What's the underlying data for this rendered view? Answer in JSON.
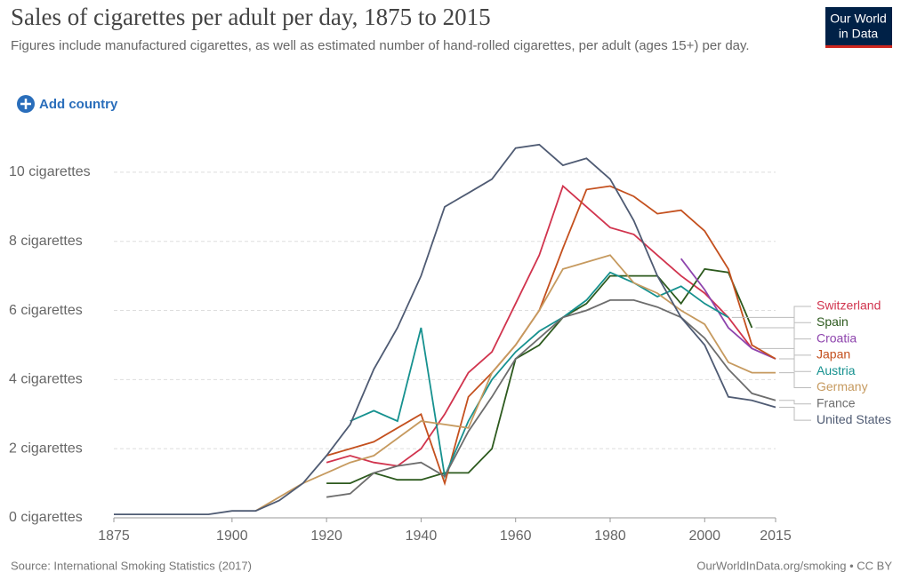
{
  "header": {
    "logo_line1": "Our World",
    "logo_line2": "in Data",
    "add_country": "Add country"
  },
  "footer": {
    "source": "Source: International Smoking Statistics (2017)",
    "credit": "OurWorldInData.org/smoking • CC BY"
  },
  "chart_data": {
    "type": "line",
    "title": "Sales of cigarettes per adult per day, 1875 to 2015",
    "subtitle": "Figures include manufactured cigarettes, as well as estimated number of hand-rolled cigarettes, per adult (ages 15+) per day.",
    "x": [
      1875,
      1880,
      1885,
      1890,
      1895,
      1900,
      1905,
      1910,
      1915,
      1920,
      1925,
      1930,
      1935,
      1940,
      1945,
      1950,
      1955,
      1960,
      1965,
      1970,
      1975,
      1980,
      1985,
      1990,
      1995,
      2000,
      2005,
      2010,
      2015
    ],
    "xlim": [
      1875,
      2015
    ],
    "xticks": [
      1875,
      1900,
      1920,
      1940,
      1960,
      1980,
      2000,
      2015
    ],
    "ylim": [
      0,
      11
    ],
    "yticks": [
      {
        "value": 0,
        "label": "0 cigarettes"
      },
      {
        "value": 2,
        "label": "2 cigarettes"
      },
      {
        "value": 4,
        "label": "4 cigarettes"
      },
      {
        "value": 6,
        "label": "6 cigarettes"
      },
      {
        "value": 8,
        "label": "8 cigarettes"
      },
      {
        "value": 10,
        "label": "10 cigarettes"
      }
    ],
    "grid": true,
    "series": [
      {
        "name": "Switzerland",
        "color": "#d1344e",
        "values": [
          null,
          null,
          null,
          null,
          null,
          null,
          null,
          null,
          null,
          1.6,
          1.8,
          1.6,
          1.5,
          2.0,
          3.0,
          4.2,
          4.8,
          6.2,
          7.6,
          9.6,
          9.0,
          8.4,
          8.2,
          7.6,
          7.0,
          6.5,
          5.8,
          4.9,
          null
        ]
      },
      {
        "name": "Spain",
        "color": "#2d5a1e",
        "values": [
          null,
          null,
          null,
          null,
          null,
          null,
          null,
          null,
          null,
          1.0,
          1.0,
          1.3,
          1.1,
          1.1,
          1.3,
          1.3,
          2.0,
          4.6,
          5.0,
          5.8,
          6.2,
          7.0,
          7.0,
          7.0,
          6.2,
          7.2,
          7.1,
          5.5,
          null
        ]
      },
      {
        "name": "Croatia",
        "color": "#8e44ad",
        "values": [
          null,
          null,
          null,
          null,
          null,
          null,
          null,
          null,
          null,
          null,
          null,
          null,
          null,
          null,
          null,
          null,
          null,
          null,
          null,
          null,
          null,
          null,
          null,
          null,
          7.5,
          6.6,
          5.5,
          4.9,
          4.6
        ]
      },
      {
        "name": "Japan",
        "color": "#c4501e",
        "values": [
          null,
          null,
          null,
          null,
          null,
          null,
          null,
          null,
          null,
          1.8,
          2.0,
          2.2,
          2.6,
          3.0,
          1.0,
          3.5,
          4.2,
          5.0,
          6.0,
          7.8,
          9.5,
          9.6,
          9.3,
          8.8,
          8.9,
          8.3,
          7.2,
          5.0,
          4.6
        ]
      },
      {
        "name": "Austria",
        "color": "#16918f",
        "values": [
          null,
          null,
          null,
          null,
          null,
          null,
          null,
          null,
          null,
          null,
          2.8,
          3.1,
          2.8,
          5.5,
          1.2,
          2.8,
          4.0,
          4.8,
          5.4,
          5.8,
          6.3,
          7.1,
          6.8,
          6.4,
          6.7,
          6.2,
          5.8,
          null,
          null
        ]
      },
      {
        "name": "Germany",
        "color": "#c69a5f",
        "values": [
          null,
          null,
          null,
          null,
          null,
          null,
          0.2,
          0.6,
          1.0,
          1.3,
          1.6,
          1.8,
          2.3,
          2.8,
          2.7,
          2.6,
          4.2,
          5.0,
          6.0,
          7.2,
          7.4,
          7.6,
          6.8,
          6.5,
          6.0,
          5.6,
          4.5,
          4.2,
          4.2
        ]
      },
      {
        "name": "France",
        "color": "#6d6d6d",
        "values": [
          null,
          null,
          null,
          null,
          null,
          null,
          null,
          null,
          null,
          0.6,
          0.7,
          1.3,
          1.5,
          1.6,
          1.2,
          2.5,
          3.5,
          4.6,
          5.2,
          5.8,
          6.0,
          6.3,
          6.3,
          6.1,
          5.8,
          5.2,
          4.3,
          3.6,
          3.4
        ]
      },
      {
        "name": "United States",
        "color": "#4f5b73",
        "values": [
          0.1,
          0.1,
          0.1,
          0.1,
          0.1,
          0.2,
          0.2,
          0.5,
          1.0,
          1.8,
          2.7,
          4.3,
          5.5,
          7.0,
          9.0,
          9.4,
          9.8,
          10.7,
          10.8,
          10.2,
          10.4,
          9.8,
          8.6,
          7.0,
          5.8,
          5.0,
          3.5,
          3.4,
          3.2
        ]
      }
    ]
  }
}
